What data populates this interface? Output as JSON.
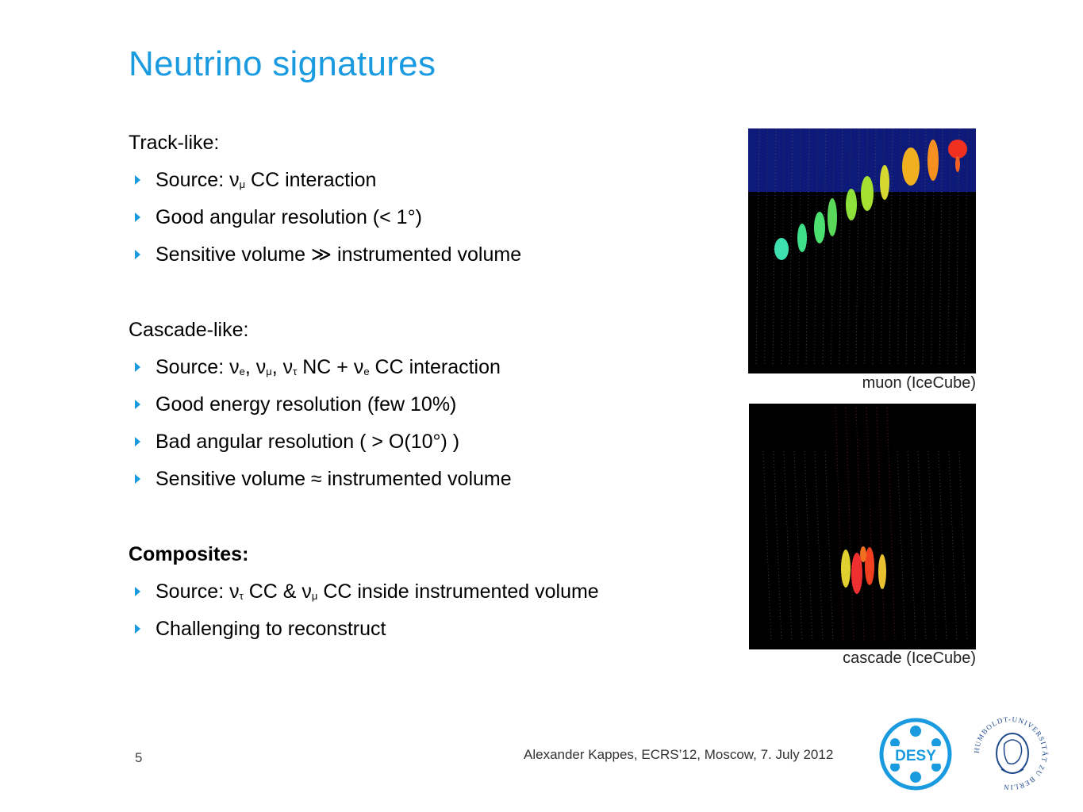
{
  "slide": {
    "title": "Neutrino signatures",
    "page_number": "5",
    "footer": "Alexander Kappes, ECRS’12, Moscow, 7. July 2012"
  },
  "sections": {
    "track": {
      "heading": "Track-like:",
      "b1_pre": "Source: ν",
      "b1_sub": "μ",
      "b1_post": " CC interaction",
      "b2": "Good angular resolution (< 1°)",
      "b3": "Sensitive volume ≫ instrumented volume"
    },
    "cascade": {
      "heading": "Cascade-like:",
      "b1_a": "Source: ν",
      "b1_s1": "e",
      "b1_b": ", ν",
      "b1_s2": "μ",
      "b1_c": ", ν",
      "b1_s3": "τ",
      "b1_d": " NC + ν",
      "b1_s4": "e",
      "b1_e": " CC interaction",
      "b2": "Good energy resolution (few 10%)",
      "b3": "Bad angular resolution ( > O(10°) )",
      "b4": "Sensitive volume ≈ instrumented volume"
    },
    "composites": {
      "heading": "Composites:",
      "b1_a": "Source: ν",
      "b1_s1": "τ",
      "b1_b": " CC & ν",
      "b1_s2": "μ",
      "b1_c": " CC inside instrumented volume",
      "b2": "Challenging to reconstruct"
    }
  },
  "figures": {
    "muon_caption": "muon (IceCube)",
    "cascade_caption": "cascade (IceCube)"
  },
  "logos": {
    "desy_text": "DESY",
    "hu_text": "HUMBOLDT-UNIVERSITÄT ZU BERLIN"
  },
  "colors": {
    "accent": "#1a9be0",
    "figure_bg": "#000000",
    "ice_top": "#0d1a7a"
  }
}
